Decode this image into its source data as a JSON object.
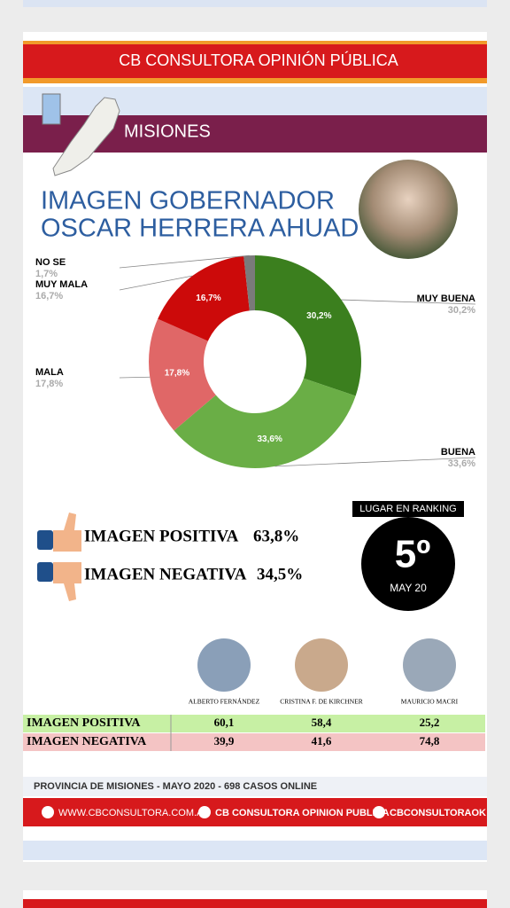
{
  "header": {
    "brand": "CB CONSULTORA OPINIÓN PÚBLICA",
    "region": "MISIONES",
    "title_lines": [
      "IMAGEN GOBERNADOR",
      "OSCAR HERRERA AHUAD"
    ]
  },
  "chart_data": {
    "type": "pie",
    "categories": [
      "MUY BUENA",
      "BUENA",
      "MALA",
      "MUY MALA",
      "NO SE"
    ],
    "values": [
      30.2,
      33.6,
      17.8,
      16.7,
      1.7
    ],
    "value_labels": [
      "30,2%",
      "33,6%",
      "17,8%",
      "16,7%",
      "1,7%"
    ],
    "colors": [
      "#3b7f1e",
      "#6aae46",
      "#e06767",
      "#cc0a0a",
      "#7a7a7a"
    ],
    "donut": true
  },
  "summary": {
    "rows": [
      {
        "label": "IMAGEN POSITIVA",
        "value": "63,8%"
      },
      {
        "label": "IMAGEN NEGATIVA",
        "value": "34,5%"
      }
    ]
  },
  "ranking": {
    "label": "LUGAR EN RANKING",
    "position": "5º",
    "date": "MAY 20"
  },
  "table": {
    "columns": [
      "ALBERTO FERNÁNDEZ",
      "CRISTINA F. DE KIRCHNER",
      "MAURICIO MACRI"
    ],
    "rows": [
      [
        "IMAGEN POSITIVA",
        "60,1",
        "58,4",
        "25,2"
      ],
      [
        "IMAGEN NEGATIVA",
        "39,9",
        "41,6",
        "74,8"
      ]
    ]
  },
  "footer": {
    "note": "PROVINCIA DE MISIONES - MAYO 2020 -  698 CASOS ONLINE",
    "web": "WWW.CBCONSULTORA.COM.AR",
    "facebook": "CB CONSULTORA OPINION PUBLICA",
    "twitter": "CBCONSULTORAOK"
  }
}
